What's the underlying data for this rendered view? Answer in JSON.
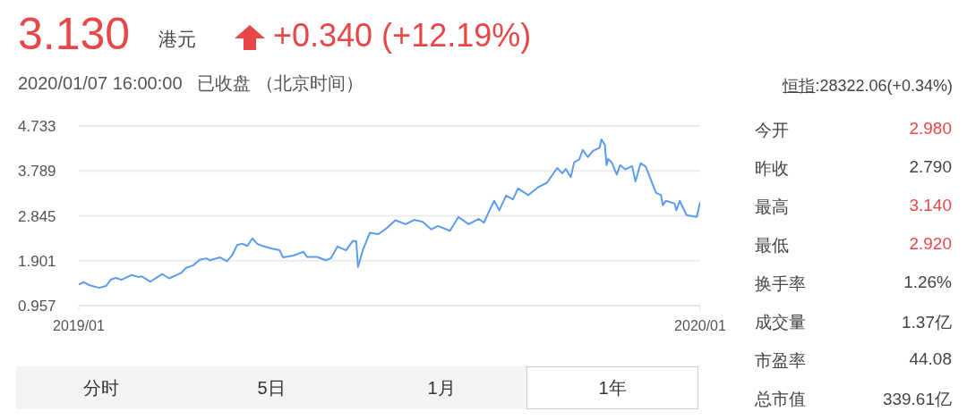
{
  "chart_data": {
    "type": "line",
    "title": "3.130",
    "subtitle": "2020/01/07 16:00:00   已收盘 （北京时间）",
    "annotations": [
      "港元",
      "+0.340 (+12.19%)",
      "恒指:28322.06(+0.34%)",
      "今开",
      "2.980",
      "昨收",
      "2.790",
      "最高",
      "3.140",
      "最低",
      "2.920",
      "换手率",
      "1.26%",
      "成交量",
      "1.37亿",
      "市盈率",
      "44.08",
      "总市值",
      "339.61亿",
      "分时",
      "5日",
      "1月",
      "1年"
    ],
    "x": [
      "2019-01-07",
      "2019-01-10",
      "2019-01-13",
      "2019-01-19",
      "2019-01-23",
      "2019-01-26",
      "2019-01-29",
      "2019-02-01",
      "2019-02-07",
      "2019-02-11",
      "2019-02-13",
      "2019-02-18",
      "2019-02-25",
      "2019-03-01",
      "2019-03-08",
      "2019-03-11",
      "2019-03-15",
      "2019-03-19",
      "2019-03-23",
      "2019-03-25",
      "2019-03-31",
      "2019-04-04",
      "2019-04-07",
      "2019-04-10",
      "2019-04-13",
      "2019-04-16",
      "2019-04-19",
      "2019-04-22",
      "2019-04-25",
      "2019-04-30",
      "2019-05-05",
      "2019-05-07",
      "2019-05-13",
      "2019-05-16",
      "2019-05-19",
      "2019-05-21",
      "2019-05-27",
      "2019-06-01",
      "2019-06-04",
      "2019-06-08",
      "2019-06-13",
      "2019-06-17",
      "2019-06-19",
      "2019-06-20",
      "2019-06-23",
      "2019-06-27",
      "2019-07-02",
      "2019-07-07",
      "2019-07-12",
      "2019-07-18",
      "2019-07-23",
      "2019-07-28",
      "2019-08-02",
      "2019-08-06",
      "2019-08-13",
      "2019-08-18",
      "2019-08-24",
      "2019-08-30",
      "2019-09-02",
      "2019-09-05",
      "2019-09-08",
      "2019-09-11",
      "2019-09-15",
      "2019-09-19",
      "2019-09-22",
      "2019-09-28",
      "2019-10-04",
      "2019-10-09",
      "2019-10-15",
      "2019-10-18",
      "2019-10-20",
      "2019-10-23",
      "2019-10-25",
      "2019-10-28",
      "2019-10-30",
      "2019-11-02",
      "2019-11-05",
      "2019-11-09",
      "2019-11-10",
      "2019-11-12",
      "2019-11-13",
      "2019-11-14",
      "2019-11-16",
      "2019-11-19",
      "2019-11-21",
      "2019-11-24",
      "2019-11-28",
      "2019-11-30",
      "2019-12-03",
      "2019-12-06",
      "2019-12-12",
      "2019-12-15",
      "2019-12-16",
      "2019-12-18",
      "2019-12-23",
      "2019-12-24",
      "2019-12-26",
      "2019-12-30",
      "2020-01-05",
      "2020-01-07"
    ],
    "series": [
      {
        "color": "#5b9cf0",
        "values": [
          1.4,
          1.45,
          1.39,
          1.33,
          1.37,
          1.51,
          1.54,
          1.5,
          1.6,
          1.56,
          1.57,
          1.46,
          1.62,
          1.53,
          1.64,
          1.75,
          1.8,
          1.92,
          1.95,
          1.91,
          1.97,
          1.89,
          2.01,
          2.23,
          2.26,
          2.21,
          2.37,
          2.25,
          2.21,
          2.16,
          2.12,
          1.97,
          2.01,
          2.05,
          2.09,
          1.98,
          1.98,
          1.91,
          1.95,
          2.2,
          2.12,
          2.32,
          2.31,
          1.77,
          2.14,
          2.49,
          2.46,
          2.59,
          2.75,
          2.67,
          2.76,
          2.72,
          2.56,
          2.63,
          2.53,
          2.82,
          2.67,
          2.78,
          2.7,
          2.94,
          3.16,
          2.96,
          3.27,
          3.19,
          3.42,
          3.28,
          3.45,
          3.54,
          3.85,
          3.74,
          3.83,
          3.66,
          3.97,
          4.03,
          4.23,
          4.08,
          4.21,
          4.28,
          4.45,
          4.34,
          3.91,
          4.04,
          3.97,
          3.71,
          3.91,
          3.82,
          3.89,
          3.57,
          3.95,
          3.88,
          3.33,
          3.28,
          3.07,
          3.16,
          3.1,
          2.96,
          3.16,
          2.86,
          2.82,
          3.13
        ]
      }
    ],
    "xlim": [
      "2019-01-07",
      "2020-01-07"
    ],
    "xticks": [
      {
        "value": "2019-01-07",
        "label": "2019/01"
      },
      {
        "value": "2020-01-07",
        "label": "2020/01"
      }
    ],
    "ylim": [
      0.957,
      4.733
    ],
    "yticks": [
      0.957,
      1.901,
      2.845,
      3.789,
      4.733
    ],
    "grid": "y",
    "marker": "none",
    "line_style": "solid",
    "legend": false
  }
}
